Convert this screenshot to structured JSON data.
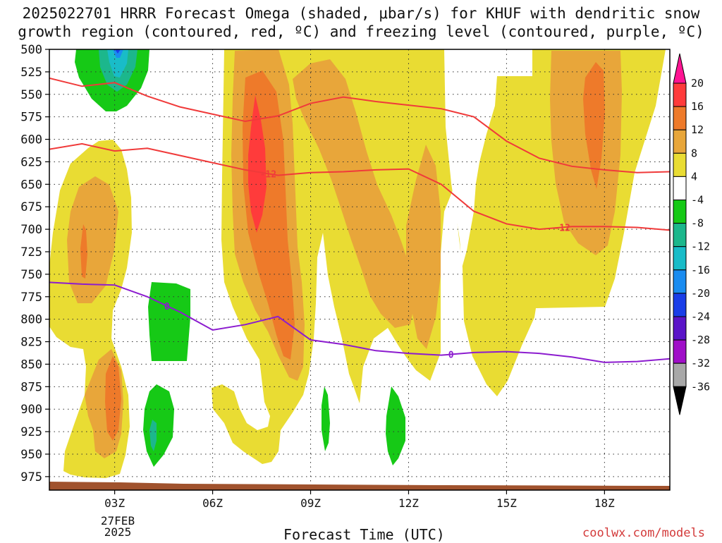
{
  "title_line1": "2025022701 HRRR Forecast Omega (shaded, μbar/s) for KHUF with dendritic snow",
  "title_line2": "growth region (contoured, red, ºC) and freezing level (contoured, purple, ºC)",
  "xlabel": "Forecast Time (UTC)",
  "credit": "coolwx.com/models",
  "date_line1": "27FEB",
  "date_line2": "2025",
  "chart_data": {
    "type": "heatmap",
    "y_axis": {
      "label": "",
      "unit": "hPa",
      "inverted": true,
      "range": [
        500,
        990
      ],
      "ticks": [
        500,
        525,
        550,
        575,
        600,
        625,
        650,
        675,
        700,
        725,
        750,
        775,
        800,
        825,
        850,
        875,
        900,
        925,
        950,
        975
      ]
    },
    "x_axis": {
      "ticks": [
        "03Z",
        "06Z",
        "09Z",
        "12Z",
        "15Z",
        "18Z"
      ],
      "tick_hours": [
        3,
        6,
        9,
        12,
        15,
        18
      ],
      "range_hours": [
        1,
        20
      ]
    },
    "grid": true,
    "colorbar": {
      "labels": [
        "20",
        "16",
        "12",
        "8",
        "4",
        "-4",
        "-8",
        "-12",
        "-16",
        "-20",
        "-24",
        "-28",
        "-32",
        "-36"
      ],
      "colors": [
        "#ff1493",
        "#ff3b3b",
        "#ee7a2a",
        "#e8a63a",
        "#e9dc33",
        "#ffffff",
        "#16c916",
        "#1cb78c",
        "#19bcc8",
        "#1a8cf0",
        "#1a3ee8",
        "#5a14c8",
        "#a00fc8",
        "#a8a8a8",
        "#000000"
      ]
    },
    "series": [
      {
        "name": "-12",
        "color": "#f03a3a",
        "points": [
          [
            1,
            532
          ],
          [
            2,
            541
          ],
          [
            3,
            537
          ],
          [
            4,
            552
          ],
          [
            5,
            564
          ],
          [
            6,
            572
          ],
          [
            7,
            580
          ],
          [
            8,
            574
          ],
          [
            9,
            560
          ],
          [
            10,
            553
          ],
          [
            11,
            558
          ],
          [
            12,
            562
          ],
          [
            13,
            566
          ],
          [
            14,
            575
          ],
          [
            15,
            602
          ],
          [
            16,
            621
          ],
          [
            17,
            630
          ],
          [
            18,
            634
          ],
          [
            19,
            637
          ],
          [
            20,
            636
          ]
        ]
      },
      {
        "name": "-12",
        "color": "#f03a3a",
        "points": [
          [
            1,
            611
          ],
          [
            2,
            605
          ],
          [
            3,
            613
          ],
          [
            4,
            610
          ],
          [
            5,
            618
          ],
          [
            6,
            626
          ],
          [
            7,
            634
          ],
          [
            8,
            640
          ],
          [
            9,
            637
          ],
          [
            10,
            636
          ],
          [
            11,
            634
          ],
          [
            12,
            633
          ],
          [
            13,
            650
          ],
          [
            14,
            680
          ],
          [
            15,
            694
          ],
          [
            16,
            700
          ],
          [
            17,
            697
          ],
          [
            18,
            697
          ],
          [
            19,
            698
          ],
          [
            20,
            701
          ]
        ]
      },
      {
        "name": "0",
        "color": "#8c1ccf",
        "points": [
          [
            1,
            759
          ],
          [
            2,
            761
          ],
          [
            3,
            762
          ],
          [
            4,
            775
          ],
          [
            5,
            792
          ],
          [
            6,
            812
          ],
          [
            7,
            806
          ],
          [
            8,
            797
          ],
          [
            9,
            823
          ],
          [
            10,
            828
          ],
          [
            11,
            835
          ],
          [
            12,
            838
          ],
          [
            13,
            840
          ],
          [
            14,
            837
          ],
          [
            15,
            836
          ],
          [
            16,
            838
          ],
          [
            17,
            842
          ],
          [
            18,
            848
          ],
          [
            19,
            847
          ],
          [
            20,
            844
          ]
        ]
      }
    ]
  }
}
